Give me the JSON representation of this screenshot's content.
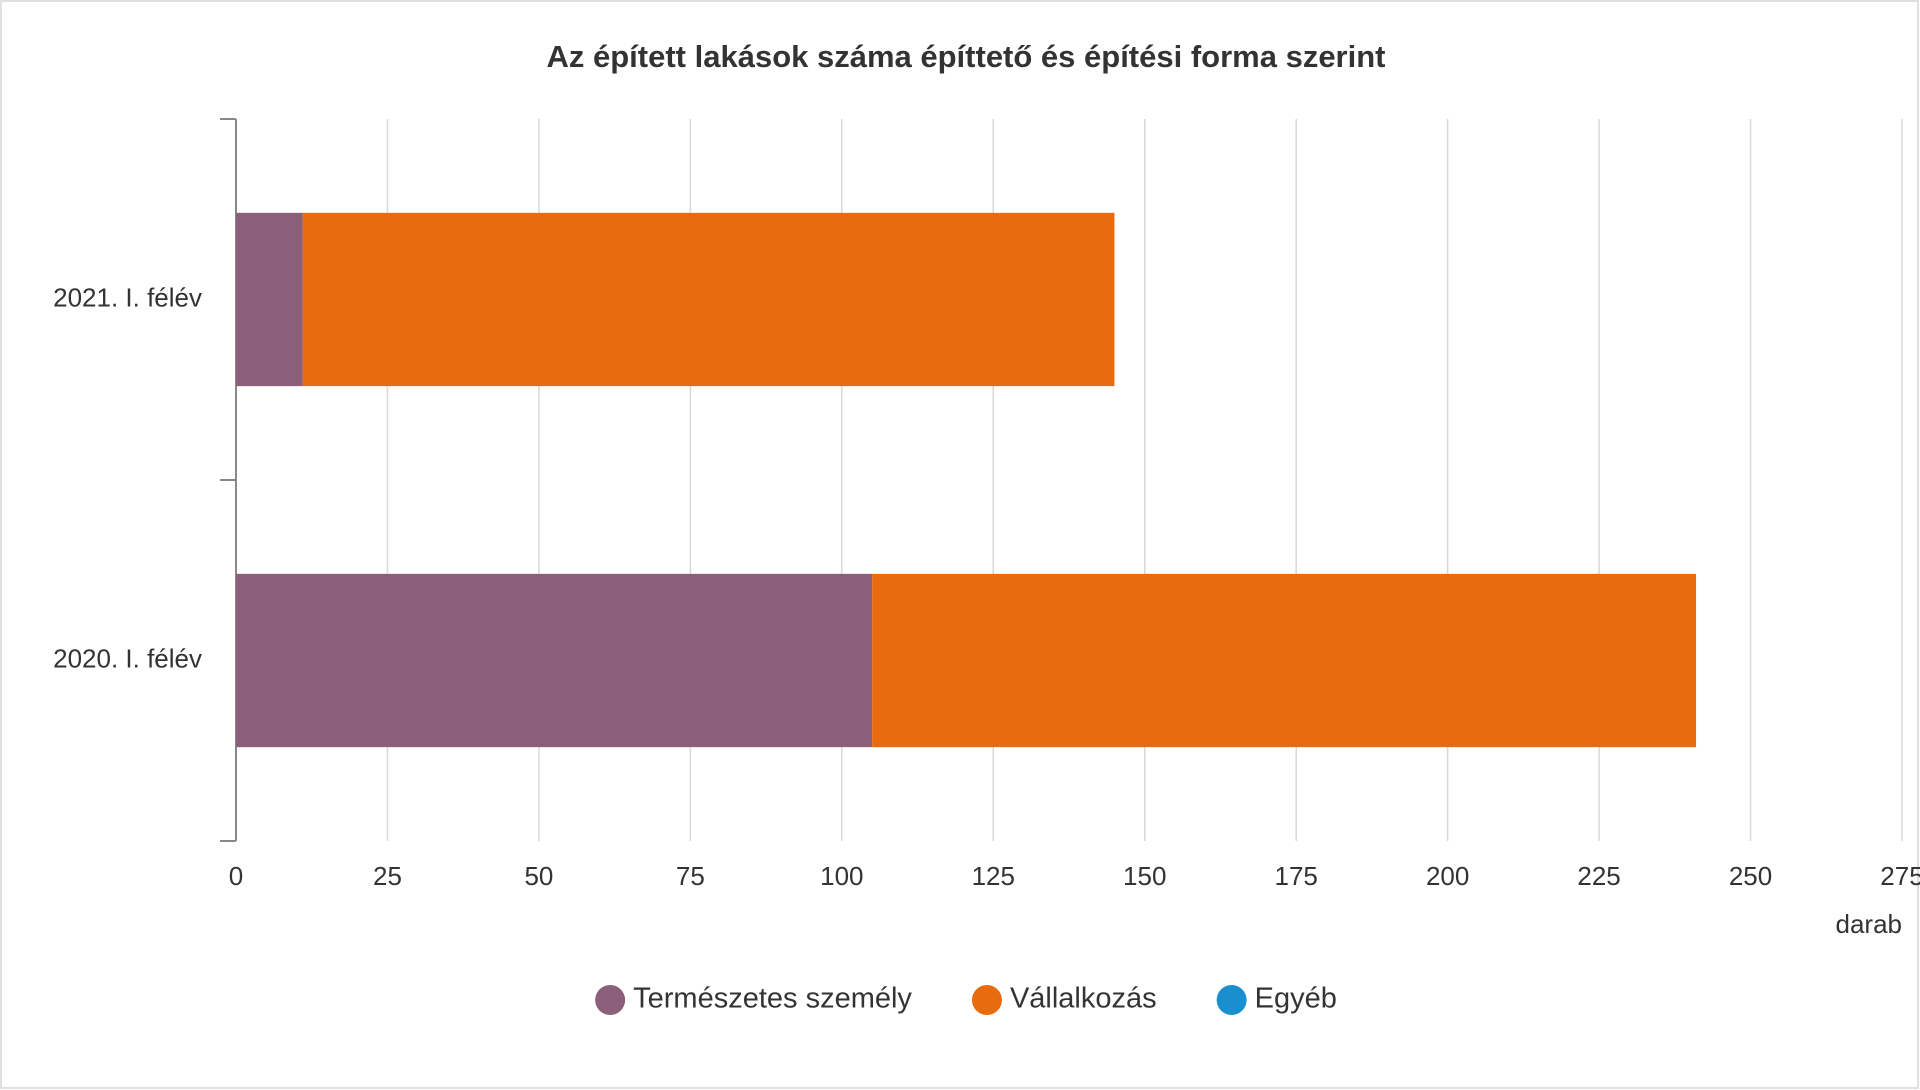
{
  "chart_data": {
    "type": "bar",
    "orientation": "horizontal",
    "stacked": true,
    "title": "Az épített lakások száma építtető és építési forma szerint",
    "categories": [
      "2021. I. félév",
      "2020. I. félév"
    ],
    "series": [
      {
        "name": "Természetes személy",
        "color": "#8b5e7a",
        "values": [
          11,
          105
        ]
      },
      {
        "name": "Vállalkozás",
        "color": "#e96b10",
        "values": [
          134,
          136
        ]
      },
      {
        "name": "Egyéb",
        "color": "#1a8fd0",
        "values": [
          0,
          0
        ]
      }
    ],
    "x_axis_label": "darab",
    "xlim": [
      0,
      275
    ],
    "xticks": [
      0,
      25,
      50,
      75,
      100,
      125,
      150,
      175,
      200,
      225,
      250,
      275
    ],
    "grid": true,
    "legend": "bottom"
  }
}
